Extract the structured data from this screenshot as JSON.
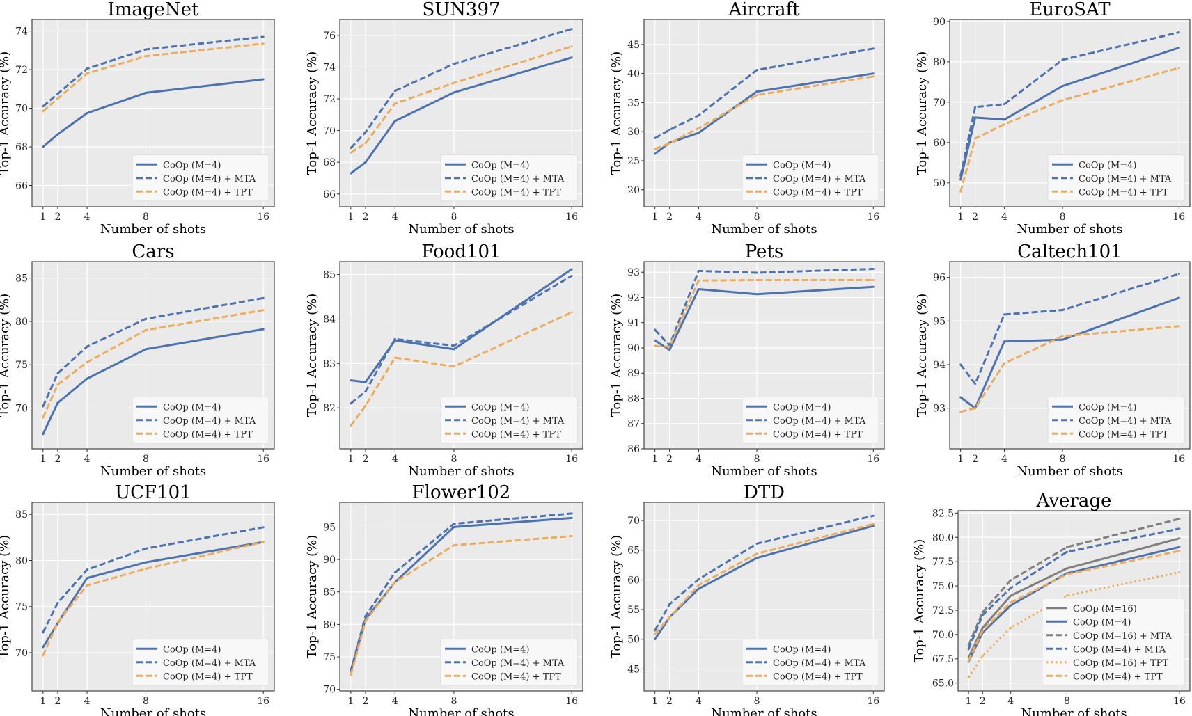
{
  "chart_data": [
    {
      "type": "line",
      "title": "ImageNet",
      "xlabel": "Number of shots",
      "ylabel": "Top-1 Accuracy (%)",
      "x": [
        1,
        2,
        4,
        8,
        16
      ],
      "xticks": [
        "1",
        "2",
        "4",
        "8",
        "16"
      ],
      "xlim": [
        0.25,
        16.75
      ],
      "ylim": [
        64.9,
        74.6
      ],
      "yticks": [
        66,
        68,
        70,
        72,
        74
      ],
      "ytick_labels": [
        "66",
        "68",
        "70",
        "72",
        "74"
      ],
      "grid": true,
      "legend": "lower-right",
      "series": [
        {
          "name": "CoOp (M=4)",
          "style": "solid",
          "color": "#4C72B0",
          "values": [
            68.0,
            68.65,
            69.75,
            70.8,
            71.5
          ]
        },
        {
          "name": "CoOp (M=4) + MTA",
          "style": "dashed",
          "color": "#4C72B0",
          "values": [
            70.1,
            70.75,
            72.05,
            73.05,
            73.7
          ]
        },
        {
          "name": "CoOp (M=4) + TPT",
          "style": "dashed",
          "color": "#EAAC5E",
          "values": [
            69.85,
            70.5,
            71.8,
            72.7,
            73.35
          ]
        }
      ]
    },
    {
      "type": "line",
      "title": "SUN397",
      "xlabel": "Number of shots",
      "ylabel": "Top-1 Accuracy (%)",
      "x": [
        1,
        2,
        4,
        8,
        16
      ],
      "xticks": [
        "1",
        "2",
        "4",
        "8",
        "16"
      ],
      "xlim": [
        0.25,
        16.75
      ],
      "ylim": [
        65.2,
        77.0
      ],
      "yticks": [
        66,
        68,
        70,
        72,
        74,
        76
      ],
      "ytick_labels": [
        "66",
        "68",
        "70",
        "72",
        "74",
        "76"
      ],
      "grid": true,
      "legend": "lower-right",
      "series": [
        {
          "name": "CoOp (M=4)",
          "style": "solid",
          "color": "#4C72B0",
          "values": [
            67.3,
            68.0,
            70.6,
            72.4,
            74.6
          ]
        },
        {
          "name": "CoOp (M=4) + MTA",
          "style": "dashed",
          "color": "#4C72B0",
          "values": [
            68.9,
            69.9,
            72.5,
            74.2,
            76.4
          ]
        },
        {
          "name": "CoOp (M=4) + TPT",
          "style": "dashed",
          "color": "#EAAC5E",
          "values": [
            68.6,
            69.2,
            71.7,
            73.0,
            75.3
          ]
        }
      ]
    },
    {
      "type": "line",
      "title": "Aircraft",
      "xlabel": "Number of shots",
      "ylabel": "Top-1 Accuracy (%)",
      "x": [
        1,
        2,
        4,
        8,
        16
      ],
      "xticks": [
        "1",
        "2",
        "4",
        "8",
        "16"
      ],
      "xlim": [
        0.25,
        16.75
      ],
      "ylim": [
        17.1,
        49.3
      ],
      "yticks": [
        20,
        25,
        30,
        35,
        40,
        45
      ],
      "ytick_labels": [
        "20",
        "25",
        "30",
        "35",
        "40",
        "45"
      ],
      "grid": true,
      "legend": "lower-right",
      "series": [
        {
          "name": "CoOp (M=4)",
          "style": "solid",
          "color": "#4C72B0",
          "values": [
            26.2,
            28.1,
            29.8,
            36.9,
            40.0
          ]
        },
        {
          "name": "CoOp (M=4) + MTA",
          "style": "dashed",
          "color": "#4C72B0",
          "values": [
            28.9,
            30.3,
            32.8,
            40.6,
            44.3
          ]
        },
        {
          "name": "CoOp (M=4) + TPT",
          "style": "dashed",
          "color": "#EAAC5E",
          "values": [
            27.0,
            28.0,
            30.6,
            36.3,
            39.5
          ]
        }
      ]
    },
    {
      "type": "line",
      "title": "EuroSAT",
      "xlabel": "Number of shots",
      "ylabel": "Top-1 Accuracy (%)",
      "x": [
        1,
        2,
        4,
        8,
        16
      ],
      "xticks": [
        "1",
        "2",
        "4",
        "8",
        "16"
      ],
      "xlim": [
        0.25,
        16.75
      ],
      "ylim": [
        44.1,
        90.5
      ],
      "yticks": [
        50,
        60,
        70,
        80,
        90
      ],
      "ytick_labels": [
        "50",
        "60",
        "70",
        "80",
        "90"
      ],
      "grid": true,
      "legend": "lower-right",
      "series": [
        {
          "name": "CoOp (M=4)",
          "style": "solid",
          "color": "#4C72B0",
          "values": [
            50.8,
            66.2,
            65.7,
            74.0,
            83.5
          ]
        },
        {
          "name": "CoOp (M=4) + MTA",
          "style": "dashed",
          "color": "#4C72B0",
          "values": [
            51.8,
            68.8,
            69.5,
            80.5,
            87.3
          ]
        },
        {
          "name": "CoOp (M=4) + TPT",
          "style": "dashed",
          "color": "#EAAC5E",
          "values": [
            47.8,
            61.0,
            64.5,
            70.5,
            78.5
          ]
        }
      ]
    },
    {
      "type": "line",
      "title": "Cars",
      "xlabel": "Number of shots",
      "ylabel": "Top-1 Accuracy (%)",
      "x": [
        1,
        2,
        4,
        8,
        16
      ],
      "xticks": [
        "1",
        "2",
        "4",
        "8",
        "16"
      ],
      "xlim": [
        0.25,
        16.75
      ],
      "ylim": [
        65.3,
        86.9
      ],
      "yticks": [
        70,
        75,
        80,
        85
      ],
      "ytick_labels": [
        "70",
        "75",
        "80",
        "85"
      ],
      "grid": true,
      "legend": "lower-right",
      "series": [
        {
          "name": "CoOp (M=4)",
          "style": "solid",
          "color": "#4C72B0",
          "values": [
            67.0,
            70.6,
            73.4,
            76.8,
            79.1
          ]
        },
        {
          "name": "CoOp (M=4) + MTA",
          "style": "dashed",
          "color": "#4C72B0",
          "values": [
            70.2,
            74.0,
            77.1,
            80.3,
            82.7
          ]
        },
        {
          "name": "CoOp (M=4) + TPT",
          "style": "dashed",
          "color": "#EAAC5E",
          "values": [
            68.9,
            72.7,
            75.3,
            79.0,
            81.3
          ]
        }
      ]
    },
    {
      "type": "line",
      "title": "Food101",
      "xlabel": "Number of shots",
      "ylabel": "Top-1 Accuracy (%)",
      "x": [
        1,
        2,
        4,
        8,
        16
      ],
      "xticks": [
        "1",
        "2",
        "4",
        "8",
        "16"
      ],
      "xlim": [
        0.25,
        16.75
      ],
      "ylim": [
        81.08,
        85.29
      ],
      "yticks": [
        82,
        83,
        84,
        85
      ],
      "ytick_labels": [
        "82",
        "83",
        "84",
        "85"
      ],
      "grid": true,
      "legend": "lower-right",
      "series": [
        {
          "name": "CoOp (M=4)",
          "style": "solid",
          "color": "#4C72B0",
          "values": [
            82.62,
            82.58,
            83.52,
            83.32,
            85.12
          ]
        },
        {
          "name": "CoOp (M=4) + MTA",
          "style": "dashed",
          "color": "#4C72B0",
          "values": [
            82.1,
            82.37,
            83.55,
            83.4,
            84.97
          ]
        },
        {
          "name": "CoOp (M=4) + TPT",
          "style": "dashed",
          "color": "#EAAC5E",
          "values": [
            81.6,
            82.05,
            83.13,
            82.93,
            84.15
          ]
        }
      ]
    },
    {
      "type": "line",
      "title": "Pets",
      "xlabel": "Number of shots",
      "ylabel": "Top-1 Accuracy (%)",
      "x": [
        1,
        2,
        4,
        8,
        16
      ],
      "xticks": [
        "1",
        "2",
        "4",
        "8",
        "16"
      ],
      "xlim": [
        0.25,
        16.75
      ],
      "ylim": [
        86.0,
        93.42
      ],
      "yticks": [
        86,
        87,
        88,
        89,
        90,
        91,
        92,
        93
      ],
      "ytick_labels": [
        "86",
        "87",
        "88",
        "89",
        "90",
        "91",
        "92",
        "93"
      ],
      "grid": true,
      "legend": "lower-right",
      "series": [
        {
          "name": "CoOp (M=4)",
          "style": "solid",
          "color": "#4C72B0",
          "values": [
            90.3,
            89.92,
            92.33,
            92.13,
            92.42
          ]
        },
        {
          "name": "CoOp (M=4) + MTA",
          "style": "dashed",
          "color": "#4C72B0",
          "values": [
            90.72,
            90.1,
            93.05,
            92.98,
            93.13
          ]
        },
        {
          "name": "CoOp (M=4) + TPT",
          "style": "dashed",
          "color": "#EAAC5E",
          "values": [
            90.08,
            90.05,
            92.67,
            92.69,
            92.69
          ]
        }
      ]
    },
    {
      "type": "line",
      "title": "Caltech101",
      "xlabel": "Number of shots",
      "ylabel": "Top-1 Accuracy (%)",
      "x": [
        1,
        2,
        4,
        8,
        16
      ],
      "xticks": [
        "1",
        "2",
        "4",
        "8",
        "16"
      ],
      "xlim": [
        0.25,
        16.75
      ],
      "ylim": [
        92.07,
        96.36
      ],
      "yticks": [
        93,
        94,
        95,
        96
      ],
      "ytick_labels": [
        "93",
        "94",
        "95",
        "96"
      ],
      "grid": true,
      "legend": "lower-right",
      "series": [
        {
          "name": "CoOp (M=4)",
          "style": "solid",
          "color": "#4C72B0",
          "values": [
            93.25,
            93.0,
            94.53,
            94.57,
            95.53
          ]
        },
        {
          "name": "CoOp (M=4) + MTA",
          "style": "dashed",
          "color": "#4C72B0",
          "values": [
            94.0,
            93.56,
            95.15,
            95.25,
            96.08
          ]
        },
        {
          "name": "CoOp (M=4) + TPT",
          "style": "dashed",
          "color": "#EAAC5E",
          "values": [
            92.92,
            93.0,
            94.03,
            94.65,
            94.88
          ]
        }
      ]
    },
    {
      "type": "line",
      "title": "UCF101",
      "xlabel": "Number of shots",
      "ylabel": "Top-1 Accuracy (%)",
      "x": [
        1,
        2,
        4,
        8,
        16
      ],
      "xticks": [
        "1",
        "2",
        "4",
        "8",
        "16"
      ],
      "xlim": [
        0.25,
        16.75
      ],
      "ylim": [
        65.85,
        86.3
      ],
      "yticks": [
        70,
        75,
        80,
        85
      ],
      "ytick_labels": [
        "70",
        "75",
        "80",
        "85"
      ],
      "grid": true,
      "legend": "lower-right",
      "series": [
        {
          "name": "CoOp (M=4)",
          "style": "solid",
          "color": "#4C72B0",
          "values": [
            70.6,
            73.2,
            78.1,
            79.8,
            82.0
          ]
        },
        {
          "name": "CoOp (M=4) + MTA",
          "style": "dashed",
          "color": "#4C72B0",
          "values": [
            72.2,
            75.4,
            79.0,
            81.3,
            83.6
          ]
        },
        {
          "name": "CoOp (M=4) + TPT",
          "style": "dashed",
          "color": "#EAAC5E",
          "values": [
            69.7,
            73.3,
            77.3,
            79.1,
            82.0
          ]
        }
      ]
    },
    {
      "type": "line",
      "title": "Flower102",
      "xlabel": "Number of shots",
      "ylabel": "Top-1 Accuracy (%)",
      "x": [
        1,
        2,
        4,
        8,
        16
      ],
      "xticks": [
        "1",
        "2",
        "4",
        "8",
        "16"
      ],
      "xlim": [
        0.25,
        16.75
      ],
      "ylim": [
        69.75,
        98.8
      ],
      "yticks": [
        70,
        75,
        80,
        85,
        90,
        95
      ],
      "ytick_labels": [
        "70",
        "75",
        "80",
        "85",
        "90",
        "95"
      ],
      "grid": true,
      "legend": "lower-right",
      "series": [
        {
          "name": "CoOp (M=4)",
          "style": "solid",
          "color": "#4C72B0",
          "values": [
            72.8,
            80.8,
            86.5,
            95.0,
            96.4
          ]
        },
        {
          "name": "CoOp (M=4) + MTA",
          "style": "dashed",
          "color": "#4C72B0",
          "values": [
            72.9,
            81.3,
            88.0,
            95.5,
            97.1
          ]
        },
        {
          "name": "CoOp (M=4) + TPT",
          "style": "dashed",
          "color": "#EAAC5E",
          "values": [
            72.2,
            80.5,
            86.5,
            92.2,
            93.6
          ]
        }
      ]
    },
    {
      "type": "line",
      "title": "DTD",
      "xlabel": "Number of shots",
      "ylabel": "Top-1 Accuracy (%)",
      "x": [
        1,
        2,
        4,
        8,
        16
      ],
      "xticks": [
        "1",
        "2",
        "4",
        "8",
        "16"
      ],
      "xlim": [
        0.25,
        16.75
      ],
      "ylim": [
        41.3,
        73.05
      ],
      "yticks": [
        45,
        50,
        55,
        60,
        65,
        70
      ],
      "ytick_labels": [
        "45",
        "50",
        "55",
        "60",
        "65",
        "70"
      ],
      "grid": true,
      "legend": "lower-right",
      "series": [
        {
          "name": "CoOp (M=4)",
          "style": "solid",
          "color": "#4C72B0",
          "values": [
            50.0,
            53.7,
            58.5,
            63.7,
            69.1
          ]
        },
        {
          "name": "CoOp (M=4) + MTA",
          "style": "dashed",
          "color": "#4C72B0",
          "values": [
            51.5,
            55.9,
            60.1,
            66.1,
            70.8
          ]
        },
        {
          "name": "CoOp (M=4) + TPT",
          "style": "dashed",
          "color": "#EAAC5E",
          "values": [
            50.9,
            53.7,
            59.1,
            64.4,
            69.4
          ]
        }
      ]
    },
    {
      "type": "line",
      "title": "Average",
      "xlabel": "Number of shots",
      "ylabel": "Top-1 Accuracy (%)",
      "x": [
        1,
        2,
        4,
        8,
        16
      ],
      "xticks": [
        "1",
        "2",
        "4",
        "8",
        "16"
      ],
      "xlim": [
        0.25,
        16.75
      ],
      "ylim": [
        64.19,
        82.74
      ],
      "yticks": [
        65,
        67.5,
        70,
        72.5,
        75,
        77.5,
        80,
        82.5
      ],
      "ytick_labels": [
        "65.0",
        "67.5",
        "70.0",
        "72.5",
        "75.0",
        "77.5",
        "80.0",
        "82.5"
      ],
      "grid": true,
      "legend": "lower-right",
      "series": [
        {
          "name": "CoOp (M=16)",
          "style": "solid",
          "color": "#7F7F7F",
          "values": [
            67.6,
            70.7,
            74.0,
            76.8,
            79.9
          ]
        },
        {
          "name": "CoOp (M=4)",
          "style": "solid",
          "color": "#4C72B0",
          "values": [
            67.2,
            70.2,
            73.0,
            76.3,
            79.0
          ]
        },
        {
          "name": "CoOp (M=16) + MTA",
          "style": "dashed",
          "color": "#7F7F7F",
          "values": [
            68.9,
            72.3,
            75.6,
            79.0,
            81.9
          ]
        },
        {
          "name": "CoOp (M=4) + MTA",
          "style": "dashed",
          "color": "#4C72B0",
          "values": [
            68.5,
            72.0,
            74.8,
            78.5,
            80.9
          ]
        },
        {
          "name": "CoOp (M=16) + TPT",
          "style": "dotted",
          "color": "#EAAC5E",
          "values": [
            65.6,
            67.8,
            70.7,
            74.0,
            76.4
          ]
        },
        {
          "name": "CoOp (M=4) + TPT",
          "style": "dashed",
          "color": "#EAAC5E",
          "values": [
            67.3,
            70.4,
            73.3,
            76.2,
            78.6
          ]
        }
      ]
    }
  ]
}
